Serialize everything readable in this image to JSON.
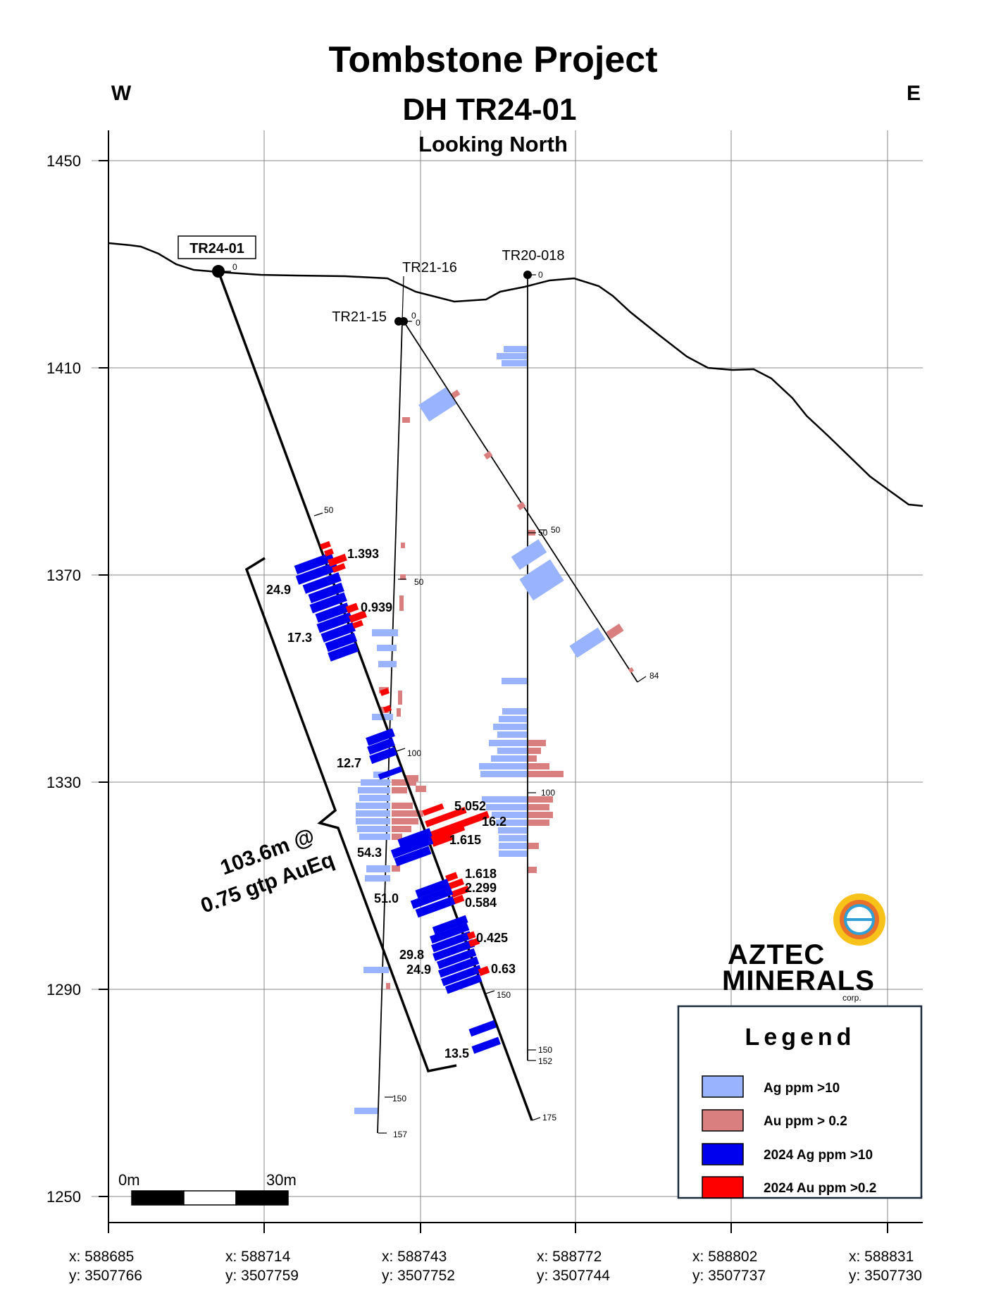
{
  "title": "Tombstone Project",
  "subtitle": "DH TR24-01",
  "view": "Looking North",
  "compass": {
    "west": "W",
    "east": "E"
  },
  "elevations": [
    "1450",
    "1410",
    "1370",
    "1330",
    "1290",
    "1250"
  ],
  "coordinates": [
    {
      "x": "x: 588685",
      "y": "y: 3507766"
    },
    {
      "x": "x: 588714",
      "y": "y: 3507759"
    },
    {
      "x": "x: 588743",
      "y": "y: 3507752"
    },
    {
      "x": "x: 588772",
      "y": "y: 3507744"
    },
    {
      "x": "x: 588802",
      "y": "y: 3507737"
    },
    {
      "x": "x: 588831",
      "y": "y: 3507730"
    }
  ],
  "holes": {
    "tr24_01": "TR24-01",
    "tr21_16": "TR21-16",
    "tr21_15": "TR21-15",
    "tr20_018": "TR20-018"
  },
  "depth_ticks": {
    "tr24_01": [
      "0",
      "50",
      "100",
      "150",
      "175"
    ],
    "tr21_15": [
      "0",
      "50",
      "100",
      "150",
      "157"
    ],
    "tr21_16": [
      "0",
      "50",
      "84"
    ],
    "tr20_018": [
      "0",
      "50",
      "100",
      "150",
      "152"
    ]
  },
  "assay_labels": {
    "au": [
      "1.393",
      "0.939",
      "5.052",
      "16.2",
      "1.615",
      "1.618",
      "2.299",
      "0.584",
      "0.425",
      "0.63"
    ],
    "ag": [
      "24.9",
      "17.3",
      "12.7",
      "54.3",
      "51.0",
      "29.8",
      "24.9",
      "13.5"
    ]
  },
  "intercept": {
    "line1": "103.6m @",
    "line2": "0.75 gtp AuEq"
  },
  "scale_bar": {
    "start": "0m",
    "end": "30m"
  },
  "logo": {
    "word1": "AZTEC",
    "word2": "MINERALS",
    "suffix": "corp."
  },
  "legend": {
    "title": "Legend",
    "items": [
      {
        "label": "Ag ppm >10",
        "color": "#99b3ff"
      },
      {
        "label": "Au ppm > 0.2",
        "color": "#d97f7f"
      },
      {
        "label": "2024 Ag ppm >10",
        "color": "#0000ee"
      },
      {
        "label": "2024 Au ppm >0.2",
        "color": "#ff0000"
      }
    ]
  },
  "colors": {
    "ag_old": "#99b3ff",
    "au_old": "#d97f7f",
    "ag_2024": "#0000ee",
    "au_2024": "#ff0000"
  }
}
